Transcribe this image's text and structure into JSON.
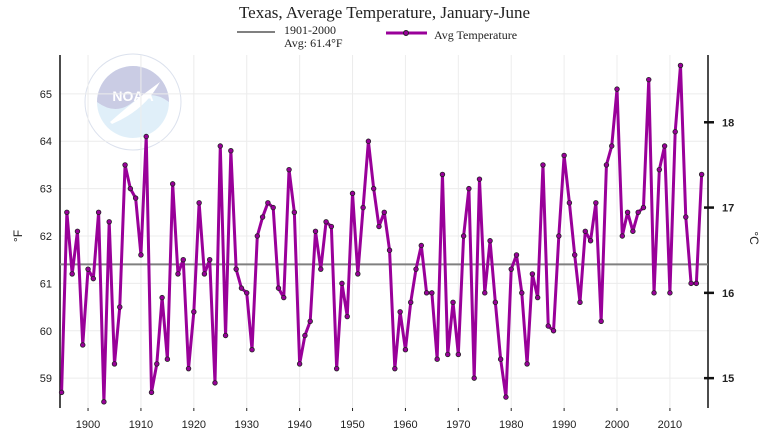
{
  "chart_data": {
    "type": "line",
    "title": "Texas, Average Temperature, January-June",
    "ylabel": "°F",
    "y2label": "°C",
    "xlim": [
      1894.7,
      2017.2
    ],
    "ylim": [
      58.37,
      65.82
    ],
    "xticks": [
      1900,
      1910,
      1920,
      1930,
      1940,
      1950,
      1960,
      1970,
      1980,
      1990,
      2000,
      2010
    ],
    "yticks": [
      59,
      60,
      61,
      62,
      63,
      64,
      65
    ],
    "y2ticks": [
      15,
      16,
      17,
      18
    ],
    "grid": true,
    "legend_placement": "top",
    "baseline": {
      "name": "1901-2000",
      "label": "Avg: 61.4°F",
      "value": 61.4,
      "color": "#808080"
    },
    "series": [
      {
        "name": "Avg Temperature",
        "color": "#990099",
        "x_start": 1895,
        "values": [
          58.7,
          62.5,
          61.2,
          62.1,
          59.7,
          61.3,
          61.1,
          62.5,
          58.5,
          62.3,
          59.3,
          60.5,
          63.5,
          63.0,
          62.8,
          61.6,
          64.1,
          58.7,
          59.3,
          60.7,
          59.4,
          63.1,
          61.2,
          61.5,
          59.2,
          60.4,
          62.7,
          61.2,
          61.5,
          58.9,
          63.9,
          59.9,
          63.8,
          61.3,
          60.9,
          60.8,
          59.6,
          62.0,
          62.4,
          62.7,
          62.6,
          60.9,
          60.7,
          63.4,
          62.5,
          59.3,
          59.9,
          60.2,
          62.1,
          61.3,
          62.3,
          62.2,
          59.2,
          61.0,
          60.3,
          62.9,
          61.2,
          62.6,
          64.0,
          63.0,
          62.2,
          62.5,
          61.7,
          59.2,
          60.4,
          59.6,
          60.6,
          61.3,
          61.8,
          60.8,
          60.8,
          59.4,
          63.3,
          59.5,
          60.6,
          59.5,
          62.0,
          63.0,
          59.0,
          63.2,
          60.8,
          61.9,
          60.6,
          59.4,
          58.6,
          61.3,
          61.6,
          60.8,
          59.3,
          61.2,
          60.7,
          63.5,
          60.1,
          60.0,
          62.0,
          63.7,
          62.7,
          61.6,
          60.6,
          62.1,
          61.9,
          62.7,
          60.2,
          63.5,
          63.9,
          65.1,
          62.0,
          62.5,
          62.1,
          62.5,
          62.6,
          65.3,
          60.8,
          63.4,
          63.9,
          60.8,
          64.2,
          65.6,
          62.4,
          61.0,
          61.0,
          63.3
        ]
      }
    ]
  },
  "logo": {
    "text": "NOAA",
    "ring_text": "NATIONAL OCEANIC AND ATMOSPHERIC ADMINISTRATION · U.S. DEPARTMENT OF COMMERCE"
  }
}
